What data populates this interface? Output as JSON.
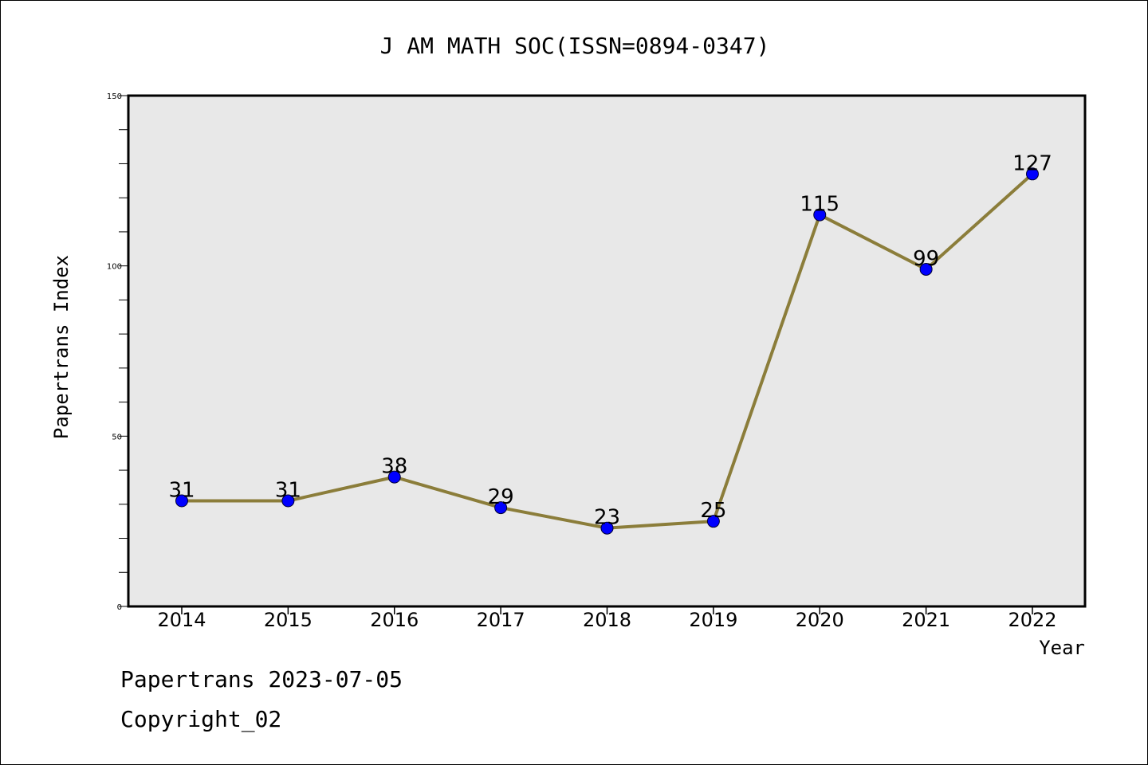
{
  "chart_data": {
    "type": "line",
    "title": "J AM MATH SOC(ISSN=0894-0347)",
    "xlabel": "Year",
    "ylabel": "Papertrans Index",
    "categories": [
      "2014",
      "2015",
      "2016",
      "2017",
      "2018",
      "2019",
      "2020",
      "2021",
      "2022"
    ],
    "series": [
      {
        "values": [
          31,
          31,
          38,
          29,
          23,
          25,
          115,
          99,
          127
        ],
        "color": "#8b7d3a",
        "marker_color": "#0000ff"
      }
    ],
    "ylim": [
      0,
      150
    ],
    "y_tick_labels": [
      "0",
      "50",
      "100",
      "150"
    ],
    "y_major_step": 50,
    "y_minor_step": 10,
    "grid": false,
    "legend": "none",
    "data_labels": true,
    "plot_background": "#e8e8e8"
  },
  "footer": {
    "line1": "Papertrans 2023-07-05",
    "line2": "Copyright_02"
  }
}
